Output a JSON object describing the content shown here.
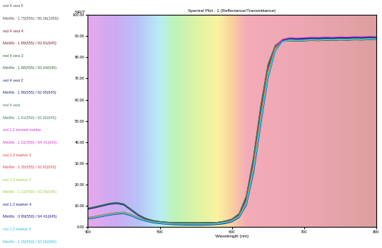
{
  "chart_data": {
    "type": "line",
    "title": "Spectral Plot - 1 (Reflectance/Transmittance)",
    "x_label": "Wavelength (nm)",
    "y_label": "%R/T",
    "xlim": [
      400,
      800
    ],
    "xticks": [
      400,
      500,
      600,
      700,
      800
    ],
    "ylim": [
      0,
      100
    ],
    "yticks": [
      {
        "value": 0,
        "label": "0.00"
      },
      {
        "value": 10,
        "label": "10.00"
      },
      {
        "value": 20,
        "label": "20.00"
      },
      {
        "value": 30,
        "label": "30.00"
      },
      {
        "value": 40,
        "label": "40.00"
      },
      {
        "value": 50,
        "label": "50.00"
      },
      {
        "value": 60,
        "label": "60.00"
      },
      {
        "value": 70,
        "label": "70.00"
      },
      {
        "value": 80,
        "label": "80.00"
      },
      {
        "value": 90,
        "label": "90.00"
      },
      {
        "value": 100,
        "label": "100.00"
      }
    ],
    "grid": false,
    "x": [
      400,
      410,
      420,
      430,
      440,
      450,
      460,
      470,
      480,
      490,
      500,
      510,
      520,
      530,
      540,
      550,
      560,
      570,
      580,
      590,
      600,
      610,
      620,
      630,
      640,
      650,
      660,
      670,
      680,
      690,
      700,
      710,
      720,
      730,
      740,
      750,
      760,
      770,
      780,
      790,
      800
    ],
    "series": [
      {
        "name": "red 4 vest 5",
        "minmax": "MinMx : 1.75(555) / 95.36(1050)",
        "color": "#505050",
        "values": [
          8.5,
          9.2,
          10.0,
          10.8,
          11.2,
          10.5,
          8.0,
          5.5,
          3.8,
          2.8,
          2.3,
          2.0,
          1.9,
          1.8,
          1.8,
          1.75,
          1.8,
          1.9,
          2.0,
          2.5,
          3.5,
          6.0,
          14.0,
          32.0,
          56.0,
          76.0,
          85.0,
          88.0,
          88.5,
          88.3,
          88.6,
          88.8,
          88.7,
          88.9,
          88.8,
          89.0,
          88.9,
          89.1,
          89.0,
          89.2,
          89.1
        ]
      },
      {
        "name": "red 4 vest 4",
        "minmax": "MinMx : 1.89(555) / 93.91(645)",
        "color": "#7a1f2b",
        "values": [
          8.7,
          9.4,
          10.2,
          11.0,
          11.4,
          10.7,
          8.2,
          5.7,
          4.0,
          3.0,
          2.4,
          2.1,
          2.0,
          1.9,
          1.9,
          1.89,
          1.9,
          2.0,
          2.1,
          2.6,
          3.6,
          6.2,
          14.5,
          33.0,
          57.0,
          76.5,
          85.5,
          88.2,
          88.4,
          88.1,
          88.3,
          88.5,
          88.4,
          88.6,
          88.5,
          88.7,
          88.6,
          88.8,
          88.7,
          88.9,
          88.8
        ]
      },
      {
        "name": "red 4 vest 3",
        "minmax": "MinMx : 1.88(555) / 93.94(645)",
        "color": "#2e6b2e",
        "values": [
          8.6,
          9.3,
          10.1,
          10.9,
          11.3,
          10.6,
          8.1,
          5.6,
          3.9,
          2.9,
          2.4,
          2.1,
          2.0,
          1.9,
          1.9,
          1.88,
          1.9,
          2.0,
          2.1,
          2.6,
          3.6,
          6.1,
          14.2,
          32.5,
          56.5,
          76.2,
          85.2,
          88.0,
          88.2,
          88.0,
          88.2,
          88.4,
          88.3,
          88.5,
          88.4,
          88.6,
          88.5,
          88.7,
          88.6,
          88.8,
          88.7
        ]
      },
      {
        "name": "red 4 vest 2",
        "minmax": "MinMx : 1.86(555) / 92.95(645)",
        "color": "#1f2f7a",
        "values": [
          8.4,
          9.1,
          9.9,
          10.7,
          11.1,
          10.4,
          7.9,
          5.4,
          3.7,
          2.8,
          2.3,
          2.0,
          1.9,
          1.87,
          1.86,
          1.86,
          1.87,
          1.9,
          2.0,
          2.5,
          3.4,
          5.9,
          13.8,
          31.5,
          55.5,
          75.5,
          84.8,
          87.5,
          87.8,
          87.6,
          87.8,
          88.0,
          87.9,
          88.1,
          88.0,
          88.2,
          88.1,
          88.3,
          88.2,
          88.4,
          88.3
        ]
      },
      {
        "name": "red 4 vest",
        "minmax": "MinMx : 1.91(550) / 92.92(645)",
        "color": "#3f7a6a",
        "values": [
          8.8,
          9.5,
          10.3,
          11.1,
          11.5,
          10.8,
          8.3,
          5.8,
          4.0,
          3.0,
          2.5,
          2.2,
          2.0,
          1.95,
          1.92,
          1.91,
          1.93,
          2.0,
          2.1,
          2.7,
          3.7,
          6.3,
          14.6,
          33.2,
          57.2,
          76.6,
          85.4,
          88.0,
          88.1,
          87.9,
          88.0,
          88.2,
          88.1,
          88.3,
          88.2,
          88.4,
          88.3,
          88.5,
          88.4,
          88.6,
          88.5
        ]
      },
      {
        "name": "red 1.2 twisted marker",
        "minmax": "MinMx : 1.31(550) / 94.41(645)",
        "color": "#d040d0",
        "values": [
          4.3,
          4.8,
          5.5,
          6.1,
          6.6,
          6.8,
          5.8,
          4.2,
          3.1,
          2.3,
          1.9,
          1.6,
          1.5,
          1.4,
          1.33,
          1.31,
          1.33,
          1.4,
          1.6,
          2.0,
          3.0,
          5.2,
          12.0,
          29.0,
          52.5,
          73.5,
          84.5,
          88.5,
          89.2,
          89.0,
          89.2,
          89.4,
          89.3,
          89.5,
          89.4,
          89.6,
          89.5,
          89.7,
          89.6,
          89.8,
          89.7
        ]
      },
      {
        "name": "red 1.2 marker 3",
        "minmax": "MinMx : 1.35(555) / 92.62(650)",
        "color": "#e04040",
        "values": [
          4.4,
          4.9,
          5.6,
          6.2,
          6.7,
          6.9,
          5.9,
          4.3,
          3.2,
          2.4,
          2.0,
          1.7,
          1.5,
          1.4,
          1.36,
          1.35,
          1.37,
          1.45,
          1.65,
          2.1,
          3.1,
          5.3,
          12.2,
          29.5,
          53.0,
          74.0,
          84.2,
          87.6,
          88.2,
          88.0,
          88.2,
          88.3,
          88.2,
          88.4,
          88.3,
          88.5,
          88.4,
          88.6,
          88.5,
          88.7,
          88.6
        ]
      },
      {
        "name": "red 1.2 marker 2",
        "minmax": "MinMx : 1.31(550) / 92.50(645)",
        "color": "#9ad040",
        "values": [
          4.2,
          4.7,
          5.4,
          6.0,
          6.5,
          6.7,
          5.7,
          4.1,
          3.1,
          2.3,
          1.9,
          1.6,
          1.45,
          1.35,
          1.32,
          1.31,
          1.33,
          1.4,
          1.6,
          2.0,
          2.9,
          5.0,
          11.6,
          28.3,
          51.5,
          72.5,
          83.8,
          87.4,
          88.0,
          87.8,
          88.0,
          88.2,
          88.1,
          88.3,
          88.2,
          88.4,
          88.3,
          88.5,
          88.4,
          88.6,
          88.5
        ]
      },
      {
        "name": "red 1.2 marker 4",
        "minmax": "MinMx : 0.89(550) / 94.41(645)",
        "color": "#202090",
        "values": [
          3.8,
          4.3,
          5.0,
          5.6,
          6.1,
          6.3,
          5.3,
          3.8,
          2.8,
          2.0,
          1.6,
          1.3,
          1.1,
          1.0,
          0.92,
          0.89,
          0.92,
          1.0,
          1.2,
          1.6,
          2.5,
          4.5,
          10.5,
          26.0,
          49.0,
          70.5,
          83.0,
          87.8,
          88.8,
          88.6,
          88.8,
          89.0,
          88.9,
          89.1,
          89.0,
          89.2,
          89.1,
          89.3,
          89.2,
          89.4,
          89.3
        ]
      },
      {
        "name": "red 1.2 marker 5",
        "minmax": "MinMx : 1.20(550) / 93.00(650)",
        "color": "#30c0e0",
        "values": [
          4.0,
          4.5,
          5.2,
          5.8,
          6.3,
          6.5,
          5.5,
          4.0,
          3.0,
          2.2,
          1.8,
          1.5,
          1.4,
          1.3,
          1.25,
          1.2,
          1.25,
          1.3,
          1.5,
          1.9,
          2.8,
          4.8,
          11.0,
          27.0,
          50.0,
          71.0,
          83.0,
          87.5,
          88.3,
          88.0,
          88.2,
          88.4,
          88.3,
          88.5,
          88.4,
          88.6,
          88.5,
          88.7,
          88.6,
          88.8,
          88.7
        ]
      }
    ]
  }
}
